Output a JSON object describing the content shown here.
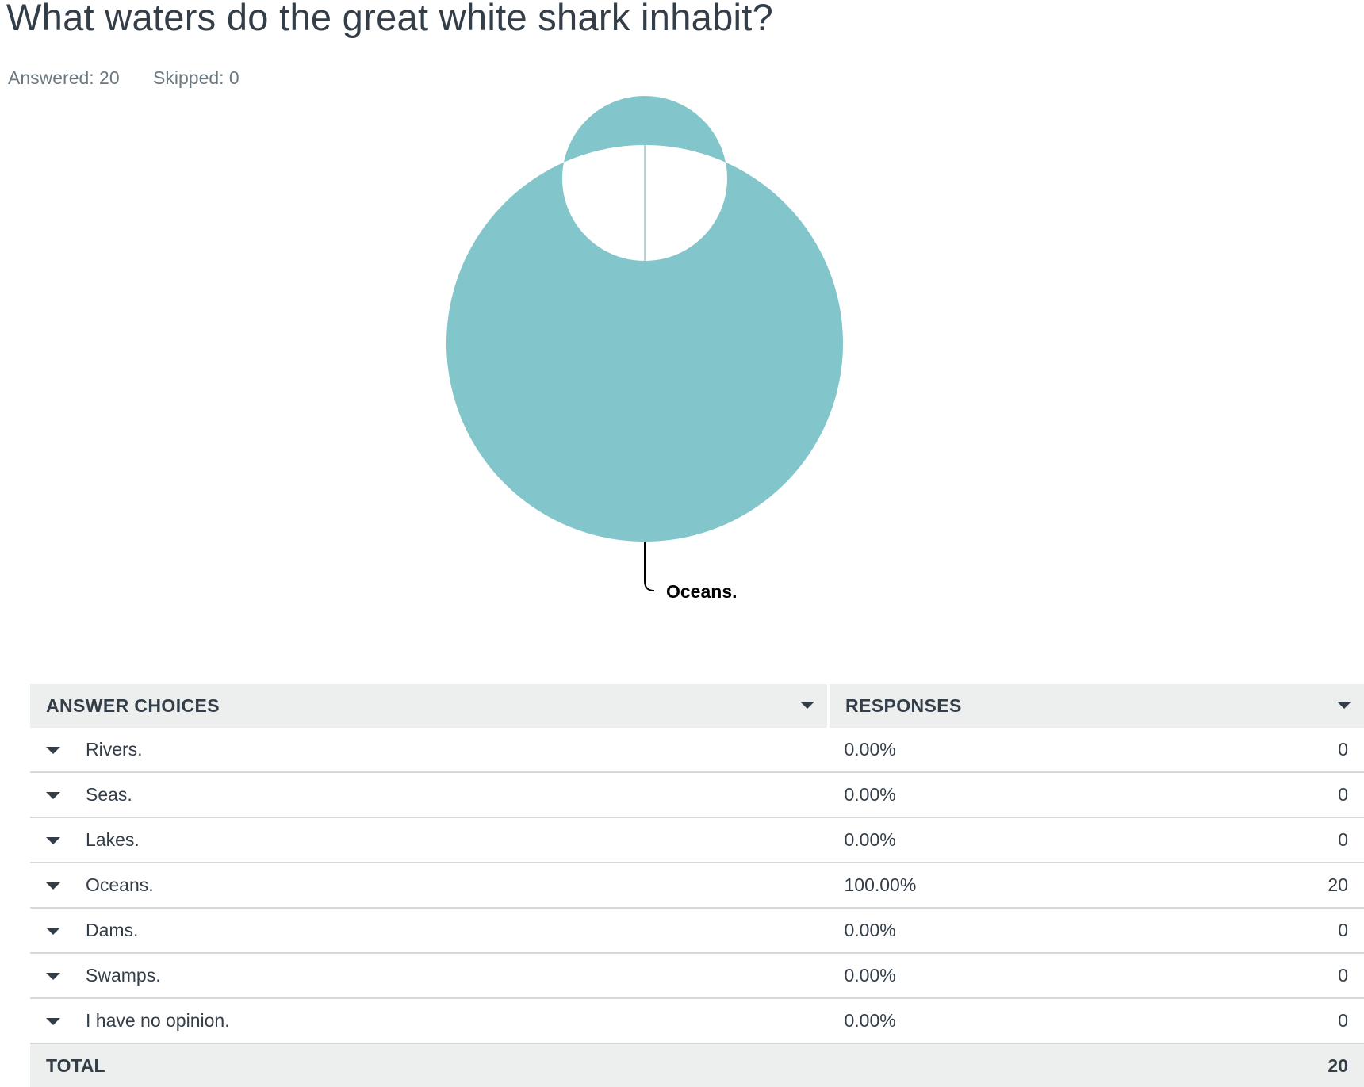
{
  "question": {
    "title": "What waters do the great white shark inhabit?",
    "answered": "Answered: 20",
    "skipped": "Skipped: 0"
  },
  "colors": {
    "slice": "#82c5cb",
    "leader": "#000000"
  },
  "chart_data": {
    "type": "pie",
    "style": "donut",
    "title": "",
    "categories": [
      "Rivers.",
      "Seas.",
      "Lakes.",
      "Oceans.",
      "Dams.",
      "Swamps.",
      "I have no opinion."
    ],
    "values": [
      0,
      0,
      0,
      20,
      0,
      0,
      0
    ],
    "percentages": [
      0,
      0,
      0,
      100,
      0,
      0,
      0
    ],
    "slice_labels": [
      "Oceans."
    ],
    "legend": "none"
  },
  "table": {
    "headers": {
      "choice": "ANSWER CHOICES",
      "responses": "RESPONSES"
    },
    "rows": [
      {
        "choice": "Rivers.",
        "percent": "0.00%",
        "count": "0"
      },
      {
        "choice": "Seas.",
        "percent": "0.00%",
        "count": "0"
      },
      {
        "choice": "Lakes.",
        "percent": "0.00%",
        "count": "0"
      },
      {
        "choice": "Oceans.",
        "percent": "100.00%",
        "count": "20"
      },
      {
        "choice": "Dams.",
        "percent": "0.00%",
        "count": "0"
      },
      {
        "choice": "Swamps.",
        "percent": "0.00%",
        "count": "0"
      },
      {
        "choice": "I have no opinion.",
        "percent": "0.00%",
        "count": "0"
      }
    ],
    "total": {
      "label": "TOTAL",
      "count": "20"
    }
  }
}
